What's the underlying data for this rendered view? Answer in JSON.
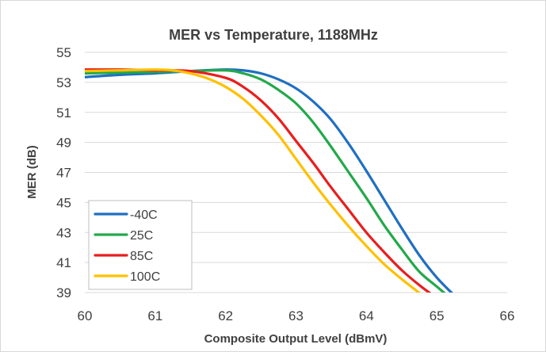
{
  "chart_data": {
    "type": "line",
    "title": "MER vs Temperature, 1188MHz",
    "xlabel": "Composite Output Level (dBmV)",
    "ylabel": "MER (dB)",
    "xlim": [
      60,
      66
    ],
    "ylim": [
      39,
      55
    ],
    "xticks": [
      "60",
      "61",
      "62",
      "63",
      "64",
      "65",
      "66"
    ],
    "yticks": [
      "39",
      "41",
      "43",
      "45",
      "47",
      "49",
      "51",
      "53",
      "55"
    ],
    "grid": "horizontal",
    "legend_position": "bottom-left",
    "series": [
      {
        "name": "-40C",
        "color": "#1F6FC1",
        "x": [
          60.0,
          60.5,
          61.0,
          61.5,
          62.0,
          62.25,
          62.5,
          62.75,
          63.0,
          63.25,
          63.5,
          63.75,
          64.0,
          64.25,
          64.5,
          64.75,
          65.0,
          65.25
        ],
        "y": [
          53.35,
          53.5,
          53.6,
          53.75,
          53.85,
          53.8,
          53.6,
          53.2,
          52.6,
          51.7,
          50.5,
          48.9,
          47.1,
          45.2,
          43.3,
          41.5,
          40.0,
          38.8
        ]
      },
      {
        "name": "25C",
        "color": "#22A94A",
        "x": [
          60.0,
          60.5,
          61.0,
          61.5,
          62.0,
          62.25,
          62.5,
          62.75,
          63.0,
          63.25,
          63.5,
          63.75,
          64.0,
          64.25,
          64.5,
          64.75,
          65.0,
          65.15
        ],
        "y": [
          53.6,
          53.65,
          53.7,
          53.75,
          53.8,
          53.6,
          53.2,
          52.5,
          51.6,
          50.3,
          48.7,
          47.0,
          45.3,
          43.5,
          41.9,
          40.4,
          39.4,
          38.8
        ]
      },
      {
        "name": "85C",
        "color": "#E81E1E",
        "x": [
          60.0,
          60.5,
          61.0,
          61.5,
          62.0,
          62.25,
          62.5,
          62.75,
          63.0,
          63.25,
          63.5,
          63.75,
          64.0,
          64.25,
          64.5,
          64.75,
          64.95
        ],
        "y": [
          53.85,
          53.85,
          53.8,
          53.75,
          53.3,
          52.7,
          51.8,
          50.6,
          49.1,
          47.6,
          46.0,
          44.5,
          43.0,
          41.7,
          40.5,
          39.5,
          38.8
        ]
      },
      {
        "name": "100C",
        "color": "#FFC000",
        "x": [
          60.0,
          60.5,
          61.0,
          61.25,
          61.5,
          61.75,
          62.0,
          62.25,
          62.5,
          62.75,
          63.0,
          63.25,
          63.5,
          63.75,
          64.0,
          64.25,
          64.5,
          64.8
        ],
        "y": [
          53.75,
          53.8,
          53.85,
          53.8,
          53.6,
          53.25,
          52.7,
          51.9,
          50.8,
          49.5,
          47.9,
          46.3,
          44.8,
          43.4,
          42.1,
          40.9,
          39.9,
          38.8
        ]
      }
    ]
  }
}
